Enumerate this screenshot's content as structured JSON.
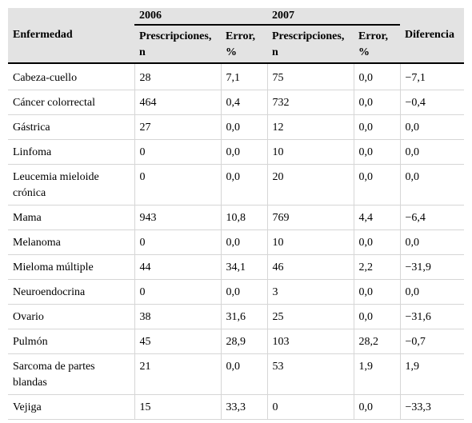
{
  "table": {
    "header": {
      "disease_label": "Enfermedad",
      "year_2006": "2006",
      "year_2007": "2007",
      "difference_label": "Diferencia",
      "prescriptions_label": "Prescripciones, n",
      "error_label": "Error, %"
    },
    "rows": [
      {
        "disease": "Cabeza-cuello",
        "p2006": "28",
        "e2006": "7,1",
        "p2007": "75",
        "e2007": "0,0",
        "diff": "−7,1"
      },
      {
        "disease": "Cáncer colorrectal",
        "p2006": "464",
        "e2006": "0,4",
        "p2007": "732",
        "e2007": "0,0",
        "diff": "−0,4"
      },
      {
        "disease": "Gástrica",
        "p2006": "27",
        "e2006": "0,0",
        "p2007": "12",
        "e2007": "0,0",
        "diff": "0,0"
      },
      {
        "disease": "Linfoma",
        "p2006": "0",
        "e2006": "0,0",
        "p2007": "10",
        "e2007": "0,0",
        "diff": "0,0"
      },
      {
        "disease": "Leucemia mieloide crónica",
        "p2006": "0",
        "e2006": "0,0",
        "p2007": "20",
        "e2007": "0,0",
        "diff": "0,0"
      },
      {
        "disease": "Mama",
        "p2006": "943",
        "e2006": "10,8",
        "p2007": "769",
        "e2007": "4,4",
        "diff": "−6,4"
      },
      {
        "disease": "Melanoma",
        "p2006": "0",
        "e2006": "0,0",
        "p2007": "10",
        "e2007": "0,0",
        "diff": "0,0"
      },
      {
        "disease": "Mieloma múltiple",
        "p2006": "44",
        "e2006": "34,1",
        "p2007": "46",
        "e2007": "2,2",
        "diff": "−31,9"
      },
      {
        "disease": "Neuroendocrina",
        "p2006": "0",
        "e2006": "0,0",
        "p2007": "3",
        "e2007": "0,0",
        "diff": "0,0"
      },
      {
        "disease": "Ovario",
        "p2006": "38",
        "e2006": "31,6",
        "p2007": "25",
        "e2007": "0,0",
        "diff": "−31,6"
      },
      {
        "disease": "Pulmón",
        "p2006": "45",
        "e2006": "28,9",
        "p2007": "103",
        "e2007": "28,2",
        "diff": "−0,7"
      },
      {
        "disease": "Sarcoma de partes blandas",
        "p2006": "21",
        "e2006": "0,0",
        "p2007": "53",
        "e2007": "1,9",
        "diff": "1,9"
      },
      {
        "disease": "Vejiga",
        "p2006": "15",
        "e2006": "33,3",
        "p2007": "0",
        "e2007": "0,0",
        "diff": "−33,3"
      }
    ]
  }
}
